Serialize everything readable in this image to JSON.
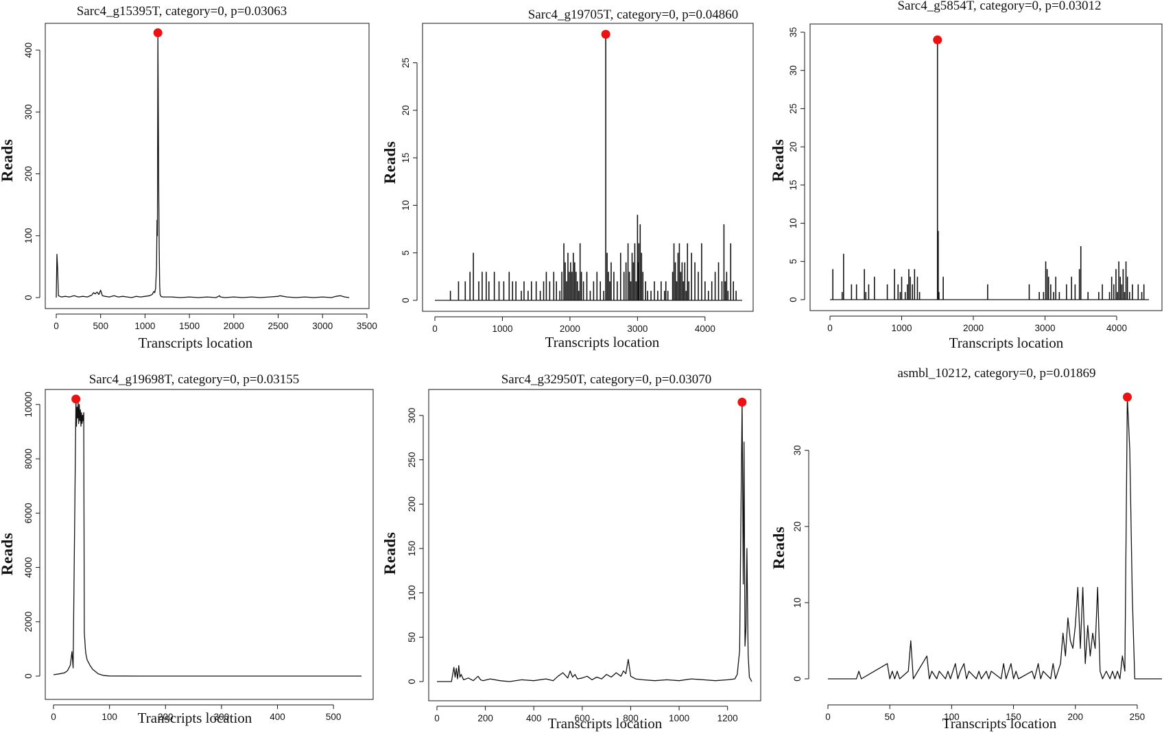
{
  "colors": {
    "line": "#111111",
    "peak_marker": "#ee1111",
    "background": "#ffffff"
  },
  "chart_data": [
    {
      "type": "line",
      "title": "Sarc4_g15395T, category=0, p=0.03063",
      "xlabel": "Transcripts location",
      "ylabel": "Reads",
      "xlim": [
        0,
        3400
      ],
      "ylim": [
        0,
        430
      ],
      "xticks": [
        0,
        500,
        1000,
        1500,
        2000,
        2500,
        3000,
        3500
      ],
      "yticks": [
        0,
        100,
        200,
        300,
        400
      ],
      "frame": "box",
      "series": [
        {
          "x": [
            0,
            8,
            15,
            25,
            60,
            100,
            150,
            200,
            250,
            300,
            350,
            400,
            420,
            440,
            460,
            480,
            500,
            520,
            550,
            600,
            650,
            700,
            750,
            800,
            850,
            900,
            950,
            1000,
            1050,
            1080,
            1100,
            1110,
            1120,
            1130,
            1135,
            1140,
            1145,
            1150,
            1155,
            1160,
            1165,
            1170,
            1180,
            1200,
            1300,
            1400,
            1500,
            1600,
            1700,
            1800,
            1840,
            1850,
            1900,
            2000,
            2100,
            2200,
            2300,
            2400,
            2500,
            2520,
            2600,
            2700,
            2800,
            2900,
            3000,
            3100,
            3150,
            3200,
            3250,
            3300
          ],
          "y": [
            0,
            70,
            50,
            3,
            1,
            2,
            1,
            3,
            1,
            2,
            1,
            4,
            8,
            6,
            9,
            5,
            12,
            3,
            2,
            1,
            3,
            1,
            2,
            1,
            0,
            2,
            1,
            2,
            3,
            5,
            10,
            8,
            15,
            50,
            125,
            100,
            428,
            300,
            160,
            80,
            20,
            5,
            2,
            1,
            1,
            0,
            1,
            0,
            1,
            0,
            3,
            1,
            0,
            1,
            0,
            1,
            0,
            1,
            2,
            3,
            1,
            0,
            1,
            0,
            1,
            0,
            2,
            3,
            1,
            0
          ]
        }
      ],
      "peak": {
        "x": 1145,
        "y": 428
      }
    },
    {
      "type": "bar",
      "title": "Sarc4_g19705T, category=0, p=0.04860",
      "xlabel": "Transcripts location",
      "ylabel": "Reads",
      "xlim": [
        0,
        4550
      ],
      "ylim": [
        0,
        28
      ],
      "xticks": [
        0,
        1000,
        2000,
        3000,
        4000
      ],
      "yticks": [
        0,
        5,
        10,
        15,
        20,
        25
      ],
      "frame": "box",
      "series": [
        {
          "x": [
            230,
            350,
            450,
            520,
            570,
            650,
            700,
            760,
            800,
            880,
            950,
            1020,
            1100,
            1150,
            1200,
            1280,
            1320,
            1380,
            1430,
            1500,
            1560,
            1610,
            1650,
            1700,
            1760,
            1800,
            1850,
            1880,
            1910,
            1930,
            1950,
            1970,
            1990,
            2010,
            2030,
            2050,
            2070,
            2090,
            2110,
            2130,
            2150,
            2170,
            2200,
            2250,
            2300,
            2350,
            2400,
            2450,
            2500,
            2530,
            2550,
            2570,
            2590,
            2610,
            2650,
            2700,
            2750,
            2800,
            2830,
            2860,
            2880,
            2900,
            2920,
            2940,
            2960,
            2980,
            3000,
            3010,
            3020,
            3040,
            3060,
            3080,
            3120,
            3150,
            3200,
            3250,
            3300,
            3350,
            3400,
            3420,
            3450,
            3520,
            3540,
            3560,
            3580,
            3600,
            3620,
            3640,
            3660,
            3680,
            3700,
            3720,
            3740,
            3760,
            3800,
            3850,
            3900,
            3950,
            4000,
            4050,
            4100,
            4150,
            4200,
            4250,
            4280,
            4300,
            4320,
            4340,
            4380,
            4420,
            4460
          ],
          "y": [
            1,
            2,
            2,
            3,
            5,
            2,
            3,
            3,
            2,
            3,
            2,
            2,
            3,
            2,
            2,
            1,
            2,
            1,
            2,
            2,
            1,
            2,
            3,
            2,
            3,
            2,
            1,
            3,
            6,
            4,
            2,
            5,
            3,
            4,
            3,
            5,
            4,
            3,
            2,
            1,
            6,
            3,
            2,
            3,
            1,
            2,
            3,
            2,
            1,
            28,
            5,
            3,
            2,
            4,
            3,
            2,
            5,
            3,
            4,
            6,
            3,
            2,
            5,
            4,
            6,
            2,
            9,
            4,
            6,
            8,
            5,
            3,
            2,
            1,
            1,
            2,
            1,
            2,
            1,
            2,
            1,
            3,
            6,
            4,
            2,
            5,
            6,
            3,
            4,
            2,
            4,
            1,
            6,
            2,
            5,
            4,
            3,
            6,
            2,
            1,
            2,
            3,
            4,
            2,
            8,
            2,
            3,
            1,
            6,
            2,
            1
          ]
        }
      ],
      "peak": {
        "x": 2530,
        "y": 28
      }
    },
    {
      "type": "bar",
      "title": "Sarc4_g5854T, category=0, p=0.03012",
      "xlabel": "Transcripts location",
      "ylabel": "Reads",
      "xlim": [
        0,
        4450
      ],
      "ylim": [
        0,
        35
      ],
      "xticks": [
        0,
        1000,
        2000,
        3000,
        4000
      ],
      "yticks": [
        0,
        5,
        10,
        15,
        20,
        25,
        30,
        35
      ],
      "frame": "box",
      "series": [
        {
          "x": [
            40,
            170,
            190,
            300,
            370,
            480,
            500,
            540,
            620,
            800,
            900,
            950,
            980,
            1000,
            1050,
            1080,
            1100,
            1120,
            1150,
            1180,
            1220,
            1250,
            1500,
            1510,
            1520,
            1580,
            2200,
            2780,
            2920,
            2980,
            3010,
            3030,
            3050,
            3080,
            3120,
            3150,
            3200,
            3300,
            3370,
            3420,
            3480,
            3500,
            3600,
            3750,
            3800,
            3900,
            3930,
            3960,
            3990,
            4010,
            4030,
            4050,
            4070,
            4090,
            4110,
            4130,
            4150,
            4180,
            4220,
            4300,
            4350,
            4380
          ],
          "y": [
            4,
            1,
            6,
            2,
            2,
            4,
            1,
            2,
            3,
            2,
            4,
            2,
            1,
            3,
            1,
            2,
            4,
            3,
            2,
            4,
            3,
            1,
            34,
            9,
            1,
            3,
            2,
            2,
            1,
            1,
            5,
            4,
            3,
            2,
            1,
            3,
            1,
            2,
            3,
            2,
            4,
            7,
            1,
            1,
            2,
            1,
            3,
            2,
            4,
            1,
            5,
            3,
            2,
            4,
            1,
            5,
            3,
            1,
            2,
            2,
            1,
            2
          ]
        }
      ],
      "peak": {
        "x": 1500,
        "y": 34
      }
    },
    {
      "type": "line",
      "title": "Sarc4_g19698T, category=0, p=0.03155",
      "xlabel": "Transcripts location",
      "ylabel": "Reads",
      "xlim": [
        0,
        550
      ],
      "ylim": [
        0,
        10300
      ],
      "xticks": [
        0,
        100,
        200,
        300,
        400,
        500
      ],
      "yticks": [
        0,
        2000,
        4000,
        6000,
        8000,
        10000
      ],
      "frame": "box",
      "series": [
        {
          "x": [
            0,
            10,
            20,
            25,
            30,
            33,
            35,
            38,
            40,
            41,
            42,
            43,
            44,
            45,
            46,
            47,
            48,
            49,
            50,
            51,
            52,
            53,
            54,
            55,
            56,
            57,
            58,
            60,
            65,
            70,
            80,
            90,
            100,
            150,
            200,
            300,
            400,
            500,
            550
          ],
          "y": [
            50,
            80,
            120,
            200,
            400,
            900,
            300,
            6000,
            10200,
            9200,
            9900,
            9500,
            10100,
            9300,
            10000,
            9400,
            9800,
            9200,
            9700,
            9300,
            9600,
            9400,
            9700,
            1600,
            1300,
            1000,
            800,
            600,
            400,
            250,
            80,
            20,
            5,
            0,
            0,
            0,
            0,
            0,
            0
          ]
        }
      ],
      "peak": {
        "x": 40,
        "y": 10200
      }
    },
    {
      "type": "line",
      "title": "Sarc4_g32950T, category=0, p=0.03070",
      "xlabel": "Transcripts location",
      "ylabel": "Reads",
      "xlim": [
        0,
        1300
      ],
      "ylim": [
        0,
        320
      ],
      "xticks": [
        0,
        200,
        400,
        600,
        800,
        1000,
        1200
      ],
      "yticks": [
        0,
        50,
        100,
        150,
        200,
        250,
        300
      ],
      "frame": "box",
      "series": [
        {
          "x": [
            0,
            60,
            70,
            75,
            80,
            85,
            90,
            95,
            100,
            110,
            130,
            150,
            170,
            180,
            190,
            220,
            260,
            300,
            350,
            400,
            450,
            480,
            500,
            520,
            540,
            550,
            560,
            570,
            580,
            600,
            620,
            640,
            660,
            680,
            700,
            720,
            740,
            760,
            770,
            780,
            790,
            800,
            820,
            850,
            900,
            950,
            1000,
            1050,
            1100,
            1150,
            1200,
            1230,
            1240,
            1250,
            1255,
            1260,
            1265,
            1268,
            1272,
            1276,
            1280,
            1285,
            1290,
            1300
          ],
          "y": [
            0,
            0,
            16,
            5,
            15,
            3,
            18,
            5,
            8,
            2,
            4,
            1,
            6,
            2,
            1,
            3,
            1,
            0,
            2,
            1,
            3,
            1,
            6,
            10,
            4,
            12,
            5,
            8,
            3,
            4,
            6,
            2,
            5,
            3,
            8,
            5,
            10,
            6,
            12,
            9,
            25,
            6,
            3,
            2,
            1,
            2,
            1,
            3,
            2,
            1,
            2,
            3,
            8,
            35,
            180,
            315,
            110,
            270,
            40,
            60,
            150,
            30,
            5,
            0
          ]
        }
      ],
      "peak": {
        "x": 1260,
        "y": 315
      }
    },
    {
      "type": "line",
      "title": "asmbl_10212, category=0, p=0.01869",
      "xlabel": "Transcripts location",
      "ylabel": "Reads",
      "xlim": [
        0,
        270
      ],
      "ylim": [
        0,
        37
      ],
      "xticks": [
        0,
        50,
        100,
        150,
        200,
        250
      ],
      "yticks": [
        0,
        10,
        20,
        30
      ],
      "frame": "axes-only",
      "series": [
        {
          "x": [
            0,
            23,
            25,
            27,
            48,
            50,
            52,
            54,
            56,
            58,
            65,
            67,
            69,
            80,
            82,
            84,
            88,
            90,
            95,
            97,
            99,
            103,
            105,
            107,
            110,
            112,
            114,
            120,
            122,
            124,
            128,
            130,
            132,
            140,
            142,
            144,
            146,
            148,
            150,
            152,
            154,
            165,
            167,
            170,
            172,
            174,
            180,
            182,
            184,
            186,
            188,
            190,
            192,
            194,
            196,
            198,
            200,
            202,
            204,
            206,
            208,
            210,
            212,
            214,
            216,
            218,
            220,
            222,
            225,
            228,
            230,
            232,
            234,
            236,
            238,
            240,
            242,
            244,
            246,
            248,
            250,
            270
          ],
          "y": [
            0,
            0,
            1,
            0,
            2,
            0,
            1,
            0,
            1,
            0,
            1,
            5,
            0,
            3,
            0,
            1,
            0,
            1,
            0,
            1,
            0,
            2,
            0,
            1,
            2,
            0,
            1,
            0,
            1,
            0,
            1,
            0,
            1,
            0,
            2,
            0,
            1,
            2,
            0,
            1,
            0,
            1,
            0,
            2,
            0,
            1,
            0,
            2,
            0,
            1,
            2,
            6,
            3,
            8,
            5,
            4,
            7,
            12,
            4,
            12,
            2,
            7,
            3,
            6,
            4,
            12,
            1,
            0,
            1,
            0,
            1,
            0,
            1,
            0,
            3,
            1,
            37,
            30,
            11,
            0,
            0,
            0
          ]
        }
      ],
      "peak": {
        "x": 242,
        "y": 37
      }
    }
  ]
}
